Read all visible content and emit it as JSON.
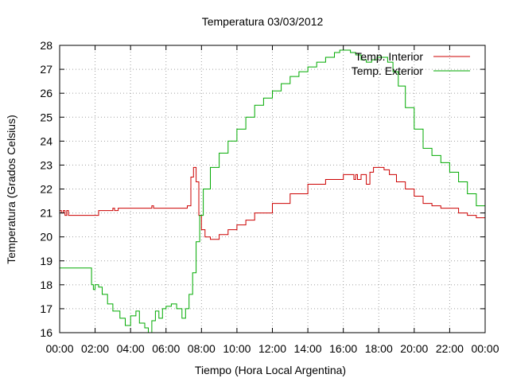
{
  "chart_data": {
    "type": "line",
    "title": "Temperatura 03/03/2012",
    "xlabel": "Tiempo (Hora Local Argentina)",
    "ylabel": "Temperatura (Grados Celsius)",
    "xlim": [
      0,
      24
    ],
    "ylim": [
      16,
      28
    ],
    "x_tick_labels": [
      "00:00",
      "02:00",
      "04:00",
      "06:00",
      "08:00",
      "10:00",
      "12:00",
      "14:00",
      "16:00",
      "18:00",
      "20:00",
      "22:00",
      "00:00"
    ],
    "y_ticks": [
      16,
      17,
      18,
      19,
      20,
      21,
      22,
      23,
      24,
      25,
      26,
      27,
      28
    ],
    "grid": true,
    "legend_position": "top-right",
    "series": [
      {
        "name": "Temp. Interior",
        "color": "#cc0000",
        "x": [
          0,
          0.1,
          0.2,
          0.3,
          0.4,
          0.5,
          1.0,
          2.0,
          2.2,
          2.9,
          3.0,
          3.1,
          3.3,
          4.0,
          5.0,
          5.2,
          5.3,
          6.0,
          7.0,
          7.2,
          7.4,
          7.55,
          7.7,
          7.85,
          8.0,
          8.2,
          8.5,
          9.0,
          9.5,
          10.0,
          10.5,
          11.0,
          12.0,
          13.0,
          14.0,
          15.0,
          16.0,
          16.5,
          16.6,
          16.7,
          16.8,
          17.0,
          17.3,
          17.5,
          17.7,
          17.9,
          18.0,
          18.3,
          18.6,
          19.0,
          19.5,
          20.0,
          20.5,
          21.0,
          21.5,
          22.0,
          22.5,
          23.0,
          23.5,
          24.0
        ],
        "y": [
          21.1,
          21.0,
          21.1,
          20.9,
          21.1,
          20.9,
          20.9,
          20.9,
          21.1,
          21.1,
          21.2,
          21.1,
          21.2,
          21.2,
          21.2,
          21.3,
          21.2,
          21.2,
          21.2,
          21.3,
          22.5,
          22.9,
          22.3,
          20.9,
          20.3,
          20.0,
          19.9,
          20.1,
          20.3,
          20.5,
          20.7,
          21.0,
          21.4,
          21.8,
          22.2,
          22.4,
          22.6,
          22.6,
          22.4,
          22.6,
          22.4,
          22.6,
          22.2,
          22.7,
          22.9,
          22.9,
          22.9,
          22.8,
          22.6,
          22.3,
          22.0,
          21.7,
          21.4,
          21.3,
          21.2,
          21.2,
          21.0,
          20.9,
          20.8,
          20.6
        ]
      },
      {
        "name": "Temp. Exterior",
        "color": "#00aa00",
        "x": [
          0,
          0.5,
          1.0,
          1.5,
          1.8,
          1.9,
          2.0,
          2.2,
          2.4,
          2.7,
          3.0,
          3.4,
          3.7,
          4.0,
          4.3,
          4.5,
          4.8,
          5.0,
          5.2,
          5.4,
          5.6,
          5.8,
          6.0,
          6.3,
          6.6,
          6.9,
          7.1,
          7.3,
          7.5,
          7.7,
          7.9,
          8.1,
          8.5,
          9.0,
          9.5,
          10.0,
          10.5,
          11.0,
          11.5,
          12.0,
          12.5,
          13.0,
          13.5,
          14.0,
          14.5,
          15.0,
          15.5,
          15.8,
          16.1,
          16.4,
          16.7,
          17.0,
          17.3,
          17.6,
          17.9,
          18.2,
          18.5,
          18.8,
          19.1,
          19.5,
          20.0,
          20.5,
          21.0,
          21.5,
          22.0,
          22.5,
          23.0,
          23.5,
          24.0
        ],
        "y": [
          18.7,
          18.7,
          18.7,
          18.7,
          18.0,
          17.8,
          18.0,
          17.9,
          17.6,
          17.2,
          16.9,
          16.6,
          16.3,
          16.7,
          16.9,
          16.4,
          16.2,
          16.0,
          16.5,
          16.9,
          16.6,
          17.0,
          17.1,
          17.2,
          17.0,
          16.6,
          17.0,
          17.6,
          18.5,
          19.8,
          20.9,
          22.0,
          22.9,
          23.5,
          24.0,
          24.5,
          25.0,
          25.5,
          25.8,
          26.1,
          26.4,
          26.7,
          26.9,
          27.1,
          27.3,
          27.5,
          27.7,
          27.8,
          27.8,
          27.7,
          27.6,
          27.4,
          27.3,
          27.4,
          27.5,
          27.5,
          27.3,
          26.9,
          26.3,
          25.4,
          24.5,
          23.7,
          23.4,
          23.1,
          22.7,
          22.3,
          21.8,
          21.3,
          20.7
        ]
      }
    ]
  }
}
